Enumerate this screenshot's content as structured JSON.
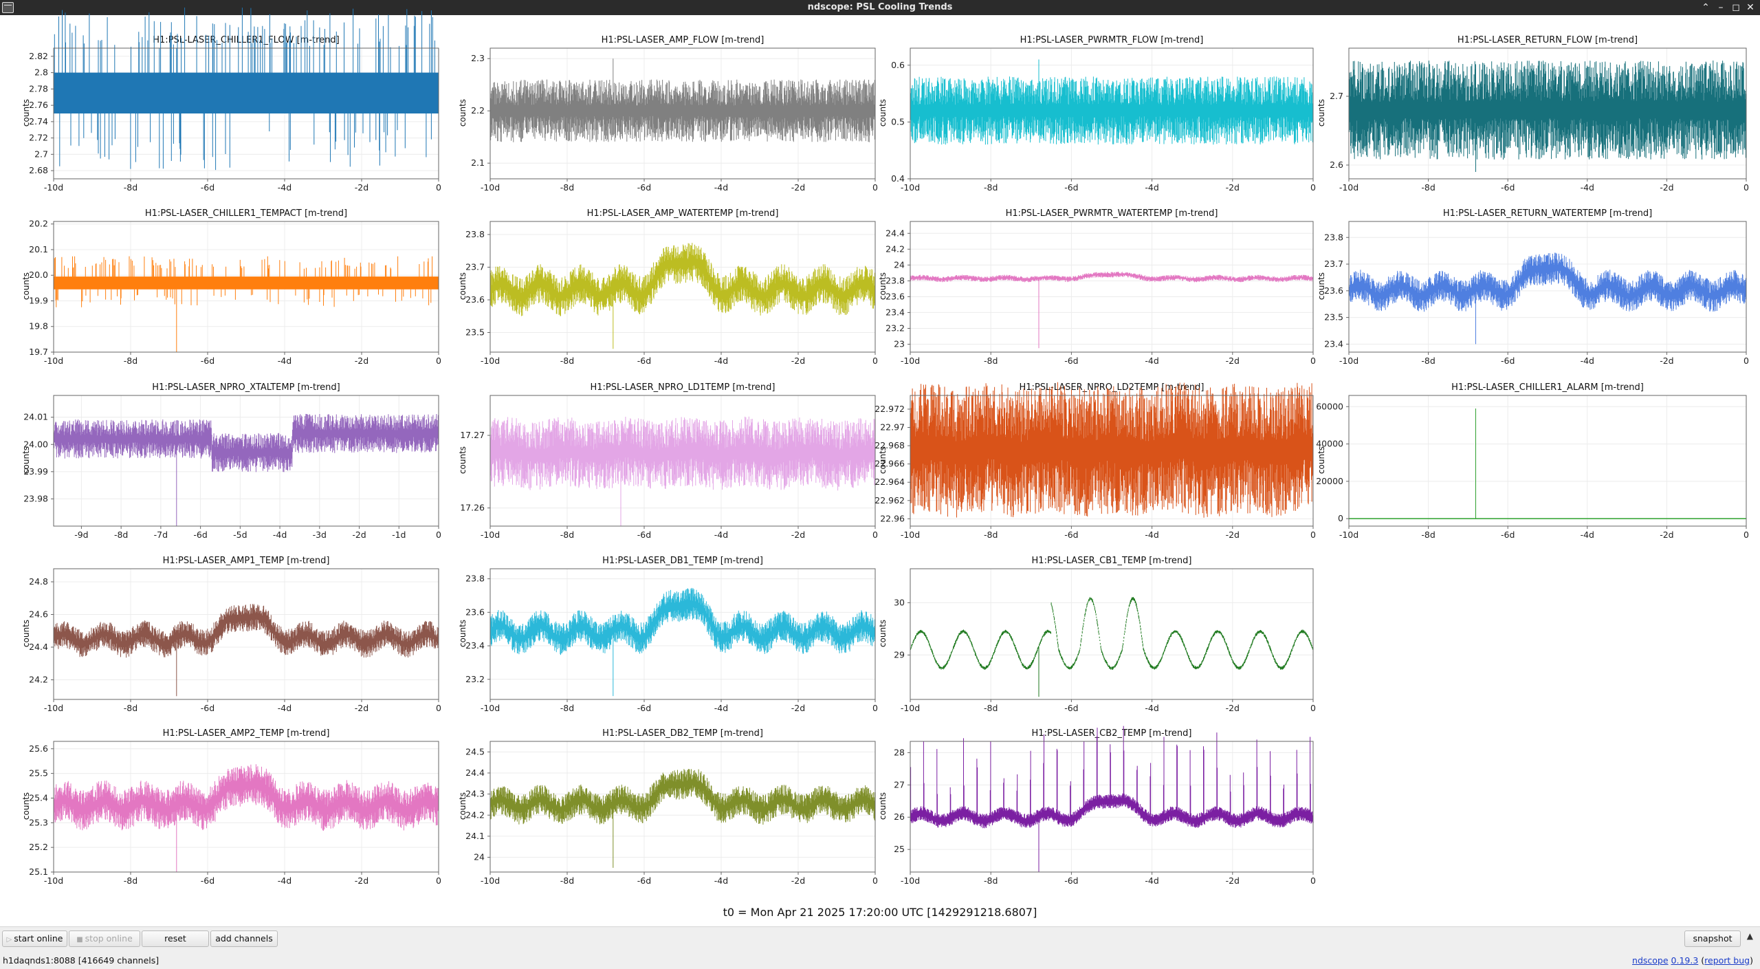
{
  "window": {
    "title": "ndscope: PSL Cooling Trends"
  },
  "t0_label": "t0 = Mon Apr 21 2025 17:20:00 UTC [1429291218.6807]",
  "toolbar": {
    "start_online": "start online",
    "stop_online": "stop online",
    "reset": "reset",
    "add_channels": "add channels",
    "snapshot": "snapshot"
  },
  "status": {
    "server": "h1daqnds1:8088  [416649 channels]",
    "app_name": "ndscope",
    "version": "0.19.3",
    "report_bug": "report bug"
  },
  "ylabel": "counts",
  "plots": [
    {
      "title": "H1:PSL-LASER_CHILLER1_FLOW [m-trend]",
      "color": "#1f77b4",
      "style": "digital",
      "base": 2.775,
      "amp": 0,
      "noise": 0.05,
      "spike": 2.83,
      "yticks": [
        "2.82",
        "2.8",
        "2.78",
        "2.76",
        "2.74",
        "2.72",
        "2.7",
        "2.68"
      ],
      "ytickvals": [
        2.82,
        2.8,
        2.78,
        2.76,
        2.74,
        2.72,
        2.7,
        2.68
      ],
      "ylim": [
        2.67,
        2.83
      ],
      "xticks": [
        "-10d",
        "-8d",
        "-6d",
        "-4d",
        "-2d",
        "0"
      ],
      "xtickvals": [
        -10,
        -8,
        -6,
        -4,
        -2,
        0
      ],
      "xlim": [
        -10,
        0
      ]
    },
    {
      "title": "H1:PSL-LASER_AMP_FLOW [m-trend]",
      "color": "#808080",
      "style": "band",
      "base": 2.2,
      "amp": 0.02,
      "noise": 0.05,
      "spike": 2.3,
      "yticks": [
        "2.3",
        "2.2",
        "2.1"
      ],
      "ytickvals": [
        2.3,
        2.2,
        2.1
      ],
      "ylim": [
        2.07,
        2.32
      ],
      "xticks": [
        "-10d",
        "-8d",
        "-6d",
        "-4d",
        "-2d",
        "0"
      ],
      "xtickvals": [
        -10,
        -8,
        -6,
        -4,
        -2,
        0
      ],
      "xlim": [
        -10,
        0
      ]
    },
    {
      "title": "H1:PSL-LASER_PWRMTR_FLOW [m-trend]",
      "color": "#17becf",
      "style": "band",
      "base": 0.52,
      "amp": 0.01,
      "noise": 0.05,
      "spike": 0.61,
      "yticks": [
        "0.6",
        "0.5",
        "0.4"
      ],
      "ytickvals": [
        0.6,
        0.5,
        0.4
      ],
      "ylim": [
        0.4,
        0.63
      ],
      "xticks": [
        "-10d",
        "-8d",
        "-6d",
        "-4d",
        "-2d",
        "0"
      ],
      "xtickvals": [
        -10,
        -8,
        -6,
        -4,
        -2,
        0
      ],
      "xlim": [
        -10,
        0
      ]
    },
    {
      "title": "H1:PSL-LASER_RETURN_FLOW [m-trend]",
      "color": "#17707b",
      "style": "band",
      "base": 2.68,
      "amp": 0.01,
      "noise": 0.06,
      "spike": 2.59,
      "yticks": [
        "2.7",
        "2.6"
      ],
      "ytickvals": [
        2.7,
        2.6
      ],
      "ylim": [
        2.58,
        2.77
      ],
      "xticks": [
        "-10d",
        "-8d",
        "-6d",
        "-4d",
        "-2d",
        "0"
      ],
      "xtickvals": [
        -10,
        -8,
        -6,
        -4,
        -2,
        0
      ],
      "xlim": [
        -10,
        0
      ]
    },
    {
      "title": "H1:PSL-LASER_CHILLER1_TEMPACT [m-trend]",
      "color": "#ff7f0e",
      "style": "digital",
      "base": 19.97,
      "amp": 0,
      "noise": 0.05,
      "spike": 19.7,
      "yticks": [
        "20.2",
        "20.1",
        "20.0",
        "19.9",
        "19.8",
        "19.7"
      ],
      "ytickvals": [
        20.2,
        20.1,
        20.0,
        19.9,
        19.8,
        19.7
      ],
      "ylim": [
        19.7,
        20.21
      ],
      "xticks": [
        "-10d",
        "-8d",
        "-6d",
        "-4d",
        "-2d",
        "0"
      ],
      "xtickvals": [
        -10,
        -8,
        -6,
        -4,
        -2,
        0
      ],
      "xlim": [
        -10,
        0
      ]
    },
    {
      "title": "H1:PSL-LASER_AMP_WATERTEMP [m-trend]",
      "color": "#bcbd22",
      "style": "wave",
      "base": 23.63,
      "amp": 0.05,
      "noise": 0.05,
      "spike": 23.45,
      "yticks": [
        "23.8",
        "23.7",
        "23.6",
        "23.5"
      ],
      "ytickvals": [
        23.8,
        23.7,
        23.6,
        23.5
      ],
      "ylim": [
        23.44,
        23.84
      ],
      "xticks": [
        "-10d",
        "-8d",
        "-6d",
        "-4d",
        "-2d",
        "0"
      ],
      "xtickvals": [
        -10,
        -8,
        -6,
        -4,
        -2,
        0
      ],
      "xlim": [
        -10,
        0
      ]
    },
    {
      "title": "H1:PSL-LASER_PWRMTR_WATERTEMP [m-trend]",
      "color": "#e377c2",
      "style": "wave",
      "base": 23.83,
      "amp": 0.03,
      "noise": 0.03,
      "spike": 22.95,
      "yticks": [
        "24.4",
        "24.2",
        "24",
        "23.8",
        "23.6",
        "23.4",
        "23.2",
        "23"
      ],
      "ytickvals": [
        24.4,
        24.2,
        24,
        23.8,
        23.6,
        23.4,
        23.2,
        23
      ],
      "ylim": [
        22.9,
        24.55
      ],
      "xticks": [
        "-10d",
        "-8d",
        "-6d",
        "-4d",
        "-2d",
        "0"
      ],
      "xtickvals": [
        -10,
        -8,
        -6,
        -4,
        -2,
        0
      ],
      "xlim": [
        -10,
        0
      ]
    },
    {
      "title": "H1:PSL-LASER_RETURN_WATERTEMP [m-trend]",
      "color": "#4f7fe0",
      "style": "wave",
      "base": 23.6,
      "amp": 0.05,
      "noise": 0.05,
      "spike": 23.4,
      "yticks": [
        "23.8",
        "23.7",
        "23.6",
        "23.5",
        "23.4"
      ],
      "ytickvals": [
        23.8,
        23.7,
        23.6,
        23.5,
        23.4
      ],
      "ylim": [
        23.37,
        23.86
      ],
      "xticks": [
        "-10d",
        "-8d",
        "-6d",
        "-4d",
        "-2d",
        "0"
      ],
      "xtickvals": [
        -10,
        -8,
        -6,
        -4,
        -2,
        0
      ],
      "xlim": [
        -10,
        0
      ]
    },
    {
      "title": "H1:PSL-LASER_NPRO_XTALTEMP [m-trend]",
      "color": "#9467bd",
      "style": "step",
      "base": 24.002,
      "amp": 0.004,
      "noise": 0.006,
      "spike": 23.97,
      "yticks": [
        "24.01",
        "24.00",
        "23.99",
        "23.98"
      ],
      "ytickvals": [
        24.01,
        24.0,
        23.99,
        23.98
      ],
      "ylim": [
        23.97,
        24.018
      ],
      "xticks": [
        "-9d",
        "-8d",
        "-7d",
        "-6d",
        "-5d",
        "-4d",
        "-3d",
        "-2d",
        "-1d",
        "0"
      ],
      "xtickvals": [
        -9,
        -8,
        -7,
        -6,
        -5,
        -4,
        -3,
        -2,
        -1,
        0
      ],
      "xlim": [
        -9.7,
        0
      ]
    },
    {
      "title": "H1:PSL-LASER_NPRO_LD1TEMP [m-trend]",
      "color": "#e3a6e6",
      "style": "quant",
      "base": 17.2675,
      "amp": 0.0003,
      "noise": 0.004,
      "spike": 17.2575,
      "yticks": [
        "17.27",
        "17.26"
      ],
      "ytickvals": [
        17.27,
        17.26
      ],
      "ylim": [
        17.2575,
        17.2755
      ],
      "xticks": [
        "-10d",
        "-8d",
        "-6d",
        "-4d",
        "-2d",
        "0"
      ],
      "xtickvals": [
        -10,
        -8,
        -6,
        -4,
        -2,
        0
      ],
      "xlim": [
        -10,
        0
      ]
    },
    {
      "title": "H1:PSL-LASER_NPRO_LD2TEMP [m-trend]",
      "color": "#d95319",
      "style": "quant",
      "base": 22.9675,
      "amp": 0.0003,
      "noise": 0.006,
      "spike": 22.9735,
      "yticks": [
        "22.972",
        "22.97",
        "22.968",
        "22.966",
        "22.964",
        "22.962",
        "22.96"
      ],
      "ytickvals": [
        22.972,
        22.97,
        22.968,
        22.966,
        22.964,
        22.962,
        22.96
      ],
      "ylim": [
        22.9592,
        22.9735
      ],
      "xticks": [
        "-10d",
        "-8d",
        "-6d",
        "-4d",
        "-2d",
        "0"
      ],
      "xtickvals": [
        -10,
        -8,
        -6,
        -4,
        -2,
        0
      ],
      "xlim": [
        -10,
        0
      ]
    },
    {
      "title": "H1:PSL-LASER_CHILLER1_ALARM [m-trend]",
      "color": "#2ca02c",
      "style": "flat",
      "base": 0,
      "amp": 0,
      "noise": 0,
      "spike": 59000,
      "yticks": [
        "60000",
        "40000",
        "20000",
        "0"
      ],
      "ytickvals": [
        60000,
        40000,
        20000,
        0
      ],
      "ylim": [
        -4000,
        66000
      ],
      "xticks": [
        "-10d",
        "-8d",
        "-6d",
        "-4d",
        "-2d",
        "0"
      ],
      "xtickvals": [
        -10,
        -8,
        -6,
        -4,
        -2,
        0
      ],
      "xlim": [
        -10,
        0
      ]
    },
    {
      "title": "H1:PSL-LASER_AMP1_TEMP [m-trend]",
      "color": "#8c564b",
      "style": "wave",
      "base": 24.45,
      "amp": 0.08,
      "noise": 0.07,
      "spike": 24.1,
      "yticks": [
        "24.8",
        "24.6",
        "24.4",
        "24.2"
      ],
      "ytickvals": [
        24.8,
        24.6,
        24.4,
        24.2
      ],
      "ylim": [
        24.08,
        24.88
      ],
      "xticks": [
        "-10d",
        "-8d",
        "-6d",
        "-4d",
        "-2d",
        "0"
      ],
      "xtickvals": [
        -10,
        -8,
        -6,
        -4,
        -2,
        0
      ],
      "xlim": [
        -10,
        0
      ]
    },
    {
      "title": "H1:PSL-LASER_DB1_TEMP [m-trend]",
      "color": "#2bb8d9",
      "style": "wave",
      "base": 23.48,
      "amp": 0.1,
      "noise": 0.08,
      "spike": 23.1,
      "yticks": [
        "23.8",
        "23.6",
        "23.4",
        "23.2"
      ],
      "ytickvals": [
        23.8,
        23.6,
        23.4,
        23.2
      ],
      "ylim": [
        23.08,
        23.86
      ],
      "xticks": [
        "-10d",
        "-8d",
        "-6d",
        "-4d",
        "-2d",
        "0"
      ],
      "xtickvals": [
        -10,
        -8,
        -6,
        -4,
        -2,
        0
      ],
      "xlim": [
        -10,
        0
      ]
    },
    {
      "title": "H1:PSL-LASER_CB1_TEMP [m-trend]",
      "color": "#1f7a1f",
      "style": "sine",
      "base": 29.1,
      "amp": 0.35,
      "noise": 0.03,
      "spike": 28.2,
      "yticks": [
        "30",
        "29"
      ],
      "ytickvals": [
        30,
        29
      ],
      "ylim": [
        28.15,
        30.65
      ],
      "xticks": [
        "-10d",
        "-8d",
        "-6d",
        "-4d",
        "-2d",
        "0"
      ],
      "xtickvals": [
        -10,
        -8,
        -6,
        -4,
        -2,
        0
      ],
      "xlim": [
        -10,
        0
      ]
    },
    {
      "title": "H1:PSL-LASER_AMP2_TEMP [m-trend]",
      "color": "#e377c2",
      "style": "wave",
      "base": 25.37,
      "amp": 0.05,
      "noise": 0.07,
      "spike": 25.1,
      "yticks": [
        "25.6",
        "25.5",
        "25.4",
        "25.3",
        "25.2",
        "25.1"
      ],
      "ytickvals": [
        25.6,
        25.5,
        25.4,
        25.3,
        25.2,
        25.1
      ],
      "ylim": [
        25.1,
        25.63
      ],
      "xticks": [
        "-10d",
        "-8d",
        "-6d",
        "-4d",
        "-2d",
        "0"
      ],
      "xtickvals": [
        -10,
        -8,
        -6,
        -4,
        -2,
        0
      ],
      "xlim": [
        -10,
        0
      ]
    },
    {
      "title": "H1:PSL-LASER_DB2_TEMP [m-trend]",
      "color": "#7f8f2a",
      "style": "wave",
      "base": 24.25,
      "amp": 0.06,
      "noise": 0.06,
      "spike": 23.95,
      "yticks": [
        "24.5",
        "24.4",
        "24.3",
        "24.2",
        "24.1",
        "24"
      ],
      "ytickvals": [
        24.5,
        24.4,
        24.3,
        24.2,
        24.1,
        24.0
      ],
      "ylim": [
        23.93,
        24.55
      ],
      "xticks": [
        "-10d",
        "-8d",
        "-6d",
        "-4d",
        "-2d",
        "0"
      ],
      "xtickvals": [
        -10,
        -8,
        -6,
        -4,
        -2,
        0
      ],
      "xlim": [
        -10,
        0
      ]
    },
    {
      "title": "H1:PSL-LASER_CB2_TEMP [m-trend]",
      "color": "#7b1fa2",
      "style": "spiky",
      "base": 26.0,
      "amp": 0.3,
      "noise": 0.15,
      "spike": 24.3,
      "yticks": [
        "28",
        "27",
        "26",
        "25"
      ],
      "ytickvals": [
        28,
        27,
        26,
        25
      ],
      "ylim": [
        24.3,
        28.35
      ],
      "xticks": [
        "-10d",
        "-8d",
        "-6d",
        "-4d",
        "-2d",
        "0"
      ],
      "xtickvals": [
        -10,
        -8,
        -6,
        -4,
        -2,
        0
      ],
      "xlim": [
        -10,
        0
      ]
    }
  ]
}
